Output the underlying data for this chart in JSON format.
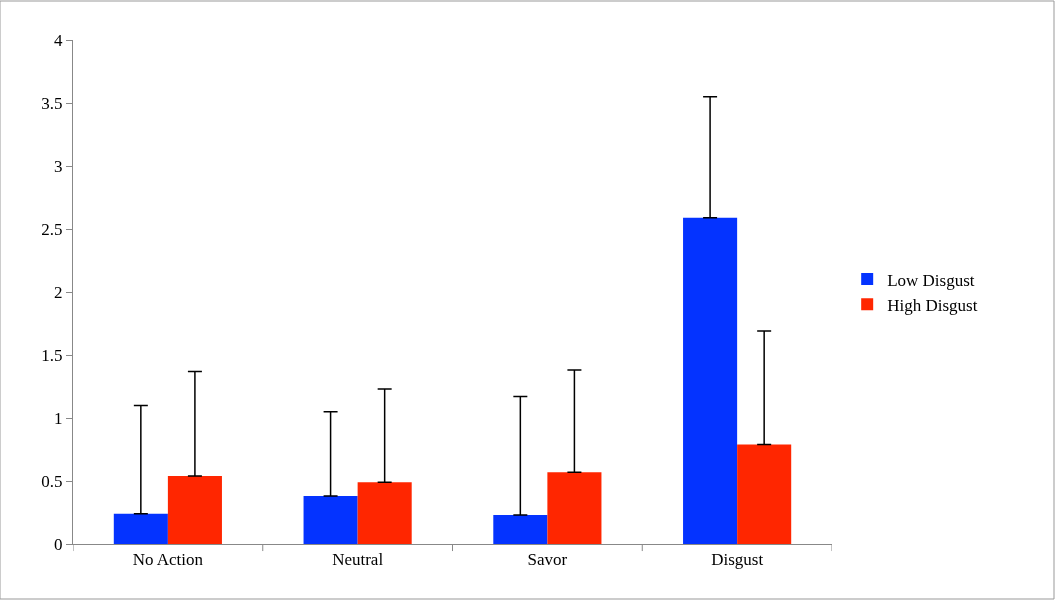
{
  "chart_data": {
    "type": "bar",
    "categories": [
      "No Action",
      "Neutral",
      "Savor",
      "Disgust"
    ],
    "series": [
      {
        "name": "Low Disgust",
        "color": "#0433ff",
        "values": [
          0.24,
          0.38,
          0.23,
          2.59
        ],
        "errors": [
          [
            0.24,
            1.1
          ],
          [
            0.38,
            1.05
          ],
          [
            0.23,
            1.17
          ],
          [
            2.59,
            3.55
          ]
        ]
      },
      {
        "name": "High Disgust",
        "color": "#ff2600",
        "values": [
          0.54,
          0.49,
          0.57,
          0.79
        ],
        "errors": [
          [
            0.54,
            1.37
          ],
          [
            0.49,
            1.23
          ],
          [
            0.57,
            1.38
          ],
          [
            0.79,
            1.69
          ]
        ]
      }
    ],
    "ylim": [
      0,
      4
    ],
    "yticks": [
      0,
      0.5,
      1,
      1.5,
      2,
      2.5,
      3,
      3.5,
      4
    ],
    "legend": "right"
  }
}
